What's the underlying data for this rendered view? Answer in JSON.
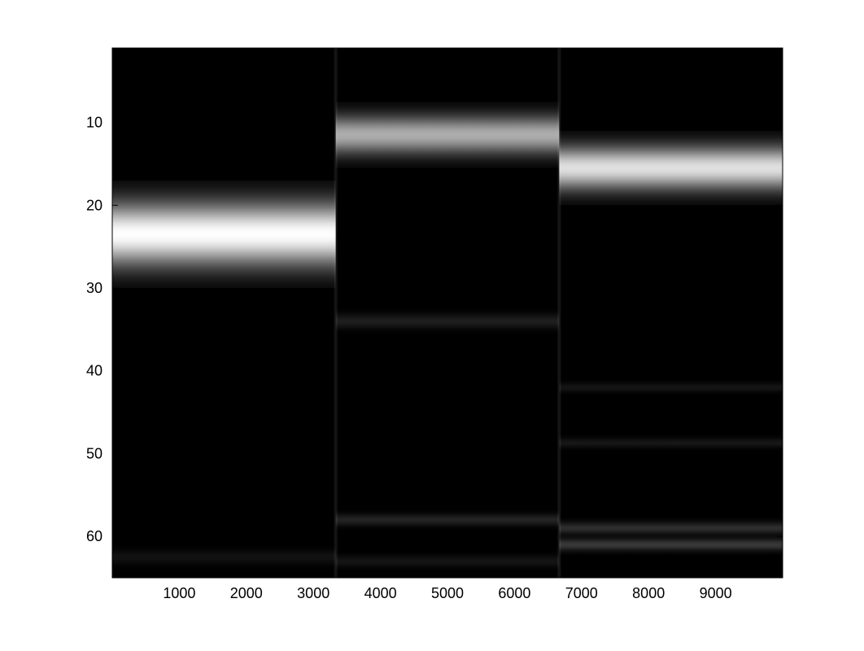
{
  "chart_data": {
    "type": "heatmap",
    "title": "",
    "xlabel": "",
    "ylabel": "",
    "colormap": "gray",
    "background_color": "#000000",
    "xlim": [
      0,
      10000
    ],
    "ylim": [
      65,
      1
    ],
    "y_direction": "top-to-bottom",
    "grid": false,
    "xticks": [
      1000,
      2000,
      3000,
      4000,
      5000,
      6000,
      7000,
      8000,
      9000
    ],
    "xtick_labels": [
      "1000",
      "2000",
      "3000",
      "4000",
      "5000",
      "6000",
      "7000",
      "8000",
      "9000"
    ],
    "yticks": [
      10,
      20,
      30,
      40,
      50,
      60
    ],
    "ytick_labels": [
      "10",
      "20",
      "30",
      "40",
      "50",
      "60"
    ],
    "segments": [
      {
        "x_start": 0,
        "x_end": 3333,
        "bands": [
          {
            "y": 23.5,
            "width": 2.6,
            "intensity": 1.0
          },
          {
            "y": 62.5,
            "width": 0.6,
            "intensity": 0.07
          }
        ]
      },
      {
        "x_start": 3333,
        "x_end": 6667,
        "bands": [
          {
            "y": 11.5,
            "width": 1.6,
            "intensity": 0.68
          },
          {
            "y": 34.0,
            "width": 0.6,
            "intensity": 0.12
          },
          {
            "y": 58.0,
            "width": 0.5,
            "intensity": 0.14
          },
          {
            "y": 63.0,
            "width": 0.5,
            "intensity": 0.08
          }
        ]
      },
      {
        "x_start": 6667,
        "x_end": 10000,
        "bands": [
          {
            "y": 15.5,
            "width": 1.8,
            "intensity": 0.88
          },
          {
            "y": 42.0,
            "width": 0.4,
            "intensity": 0.08
          },
          {
            "y": 48.7,
            "width": 0.4,
            "intensity": 0.09
          },
          {
            "y": 59.0,
            "width": 0.5,
            "intensity": 0.18
          },
          {
            "y": 61.0,
            "width": 0.5,
            "intensity": 0.22
          }
        ]
      }
    ]
  }
}
